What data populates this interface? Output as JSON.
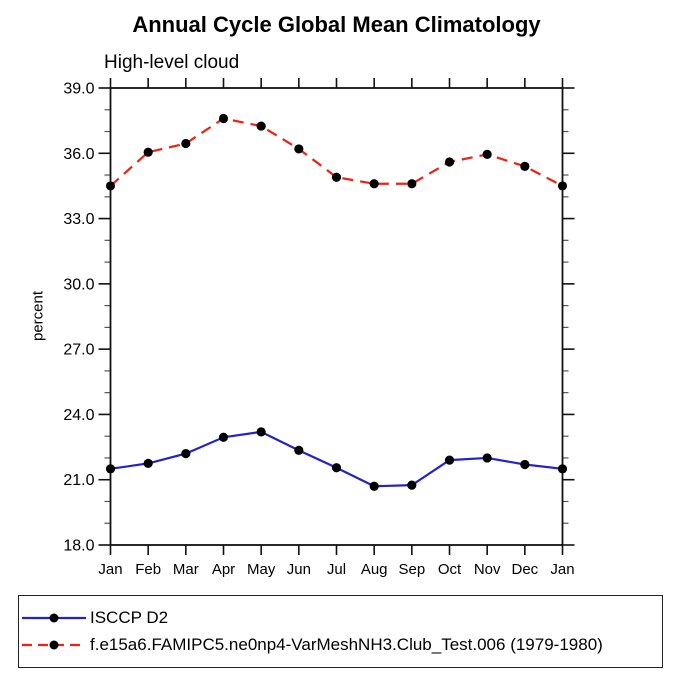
{
  "chart_data": {
    "type": "line",
    "title": "Annual Cycle Global Mean Climatology",
    "subtitle": "High-level cloud",
    "ylabel": "percent",
    "xlabel": "",
    "ylim": [
      18.0,
      39.0
    ],
    "y_major_ticks": [
      39,
      36,
      33,
      30,
      27,
      24,
      21,
      18
    ],
    "y_minor_step": 1,
    "grid": false,
    "legend_position": "bottom-left",
    "categories": [
      "Jan",
      "Feb",
      "Mar",
      "Apr",
      "May",
      "Jun",
      "Jul",
      "Aug",
      "Sep",
      "Oct",
      "Nov",
      "Dec",
      "Jan"
    ],
    "series": [
      {
        "name": "ISCCP D2",
        "color": "#2222cc",
        "style": "solid",
        "marker": "circle",
        "marker_color": "#000000",
        "values": [
          21.5,
          21.75,
          22.2,
          22.95,
          23.2,
          22.35,
          21.55,
          20.7,
          20.75,
          21.9,
          22.0,
          21.7,
          21.5
        ]
      },
      {
        "name": "f.e15a6.FAMIPC5.ne0np4-VarMeshNH3.Club_Test.006 (1979-1980)",
        "color": "#ee2211",
        "style": "dashed",
        "marker": "circle",
        "marker_color": "#000000",
        "values": [
          34.5,
          36.05,
          36.45,
          37.6,
          37.25,
          36.2,
          34.9,
          34.6,
          34.6,
          35.6,
          35.95,
          35.4,
          34.5
        ]
      }
    ]
  }
}
